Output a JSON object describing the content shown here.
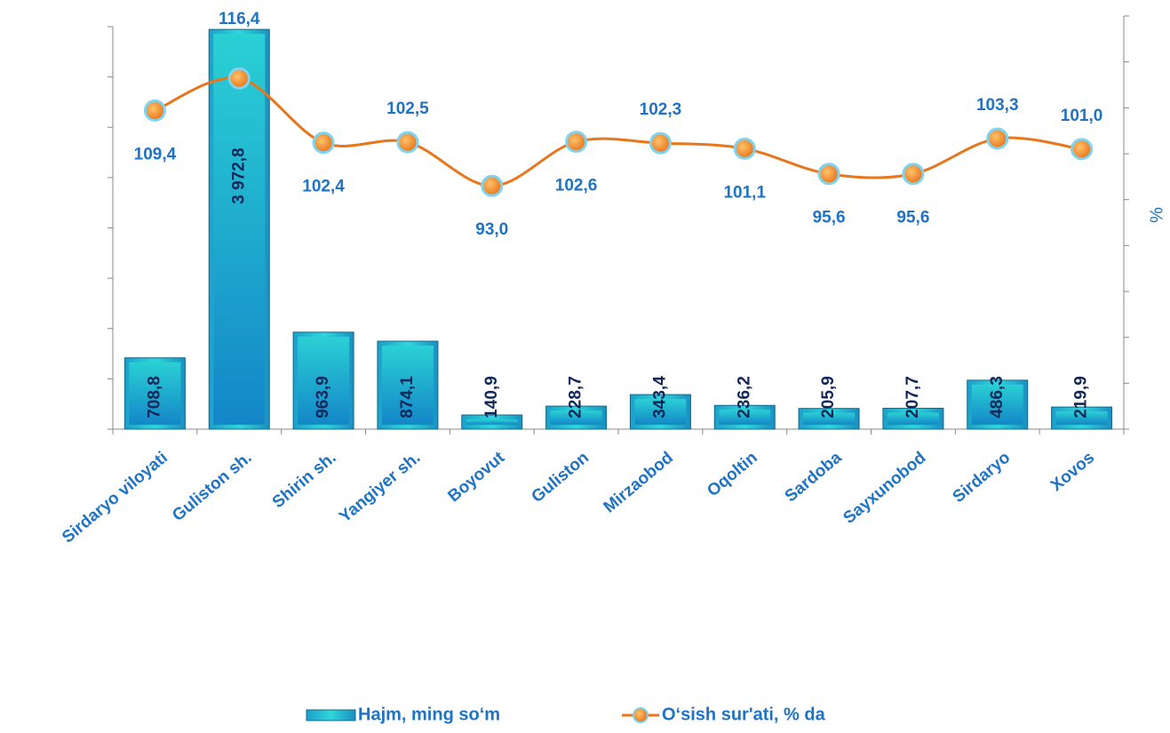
{
  "chart_data": {
    "type": "bar-line",
    "y2label": "%",
    "categories": [
      "Sirdaryo viloyati",
      "Guliston sh.",
      "Shirin sh.",
      "Yangiyer sh.",
      "Boyovut",
      "Guliston",
      "Mirzaobod",
      "Oqoltin",
      "Sardoba",
      "Sayxunobod",
      "Sirdaryo",
      "Xovos"
    ],
    "series": [
      {
        "name": "Hajm, ming so‘m",
        "type": "bar",
        "color": "#2fd6dc",
        "values": [
          708.8,
          3972.8,
          963.9,
          874.1,
          140.9,
          228.7,
          343.4,
          236.2,
          205.9,
          207.7,
          486.3,
          219.9
        ],
        "value_labels": [
          "708,8",
          "3 972,8",
          "963,9",
          "874,1",
          "140,9",
          "228,7",
          "343,4",
          "236,2",
          "205,9",
          "207,7",
          "486,3",
          "219,9"
        ]
      },
      {
        "name": "O‘sish sur'ati, % da",
        "type": "line",
        "axis": "y2",
        "color": "#e8761c",
        "values": [
          109.4,
          116.4,
          102.4,
          102.5,
          93.0,
          102.6,
          102.3,
          101.1,
          95.6,
          95.6,
          103.3,
          101.0
        ],
        "value_labels": [
          "109,4",
          "116,4",
          "102,4",
          "102,5",
          "93,0",
          "102,6",
          "102,3",
          "101,1",
          "95,6",
          "95,6",
          "103,3",
          "101,0"
        ]
      }
    ],
    "ylim": [
      0,
      4000
    ],
    "yticks": [
      0,
      500,
      1000,
      1500,
      2000,
      2500,
      3000,
      3500,
      4000
    ],
    "y2lim": [
      40,
      130
    ],
    "y2ticks": [
      40,
      50,
      60,
      70,
      80,
      90,
      100,
      110,
      120,
      130
    ]
  }
}
